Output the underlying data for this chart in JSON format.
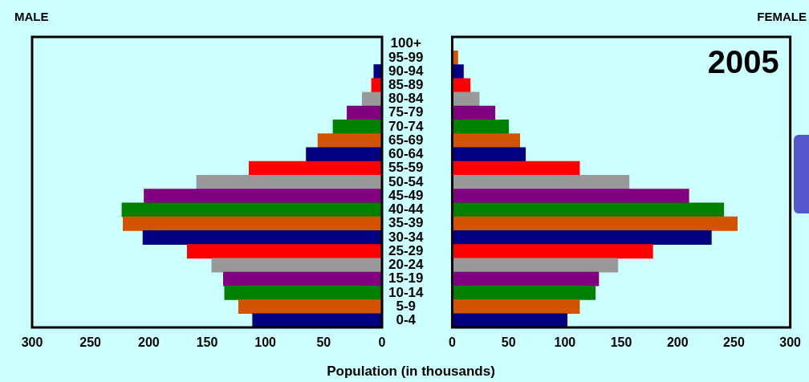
{
  "chart_data": [
    {
      "type": "bar",
      "orientation": "horizontal",
      "title": "MALE",
      "xlabel": "Population (in thousands)",
      "categories": [
        "100+",
        "95-99",
        "90-94",
        "85-89",
        "80-84",
        "75-79",
        "70-74",
        "65-69",
        "60-64",
        "55-59",
        "50-54",
        "45-49",
        "40-44",
        "35-39",
        "30-34",
        "25-29",
        "20-24",
        "15-19",
        "10-14",
        "5-9",
        "0-4"
      ],
      "values": [
        0,
        0,
        7,
        9,
        17,
        30,
        42,
        55,
        65,
        114,
        159,
        204,
        223,
        222,
        205,
        167,
        146,
        136,
        135,
        123,
        111
      ],
      "colors": [
        "#008000",
        "#d35400",
        "#000080",
        "#ff0000",
        "#999999",
        "#800080",
        "#008000",
        "#d35400",
        "#000080",
        "#ff0000",
        "#999999",
        "#800080",
        "#008000",
        "#d35400",
        "#000080",
        "#ff0000",
        "#999999",
        "#800080",
        "#008000",
        "#d35400",
        "#000080"
      ],
      "xlim": [
        300,
        0
      ],
      "xticks": [
        300,
        250,
        200,
        150,
        100,
        50,
        0
      ],
      "grid": false
    },
    {
      "type": "bar",
      "orientation": "horizontal",
      "title": "FEMALE",
      "annotations": [
        "2005"
      ],
      "values": [
        0,
        5,
        10,
        16,
        24,
        38,
        50,
        60,
        65,
        113,
        157,
        210,
        241,
        253,
        230,
        178,
        147,
        130,
        127,
        113,
        102
      ],
      "colors": [
        "#008000",
        "#d35400",
        "#000080",
        "#ff0000",
        "#999999",
        "#800080",
        "#008000",
        "#d35400",
        "#000080",
        "#ff0000",
        "#999999",
        "#800080",
        "#008000",
        "#d35400",
        "#000080",
        "#ff0000",
        "#999999",
        "#800080",
        "#008000",
        "#d35400",
        "#000080"
      ],
      "xlim": [
        0,
        300
      ],
      "xticks": [
        0,
        50,
        100,
        150,
        200,
        250,
        300
      ],
      "tick_labels": "x",
      "grid": false
    }
  ]
}
